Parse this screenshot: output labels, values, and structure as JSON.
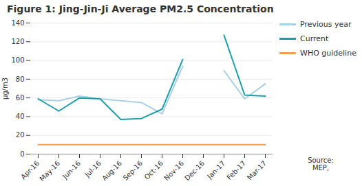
{
  "chart_data": {
    "type": "line",
    "title": "Figure 1: Jing-Jin-Ji Average PM2.5 Concentration",
    "ylabel": "μg/m3",
    "categories": [
      "Apr-16",
      "May-16",
      "Jun-16",
      "Jul-16",
      "Aug-16",
      "Sep-16",
      "Oct-16",
      "Nov-16",
      "Dec-16",
      "Jan-17",
      "Feb-17",
      "Mar-17"
    ],
    "series": [
      {
        "name": "Previous year",
        "color": "#aacfe8",
        "values": [
          58,
          57,
          62,
          59,
          57,
          55,
          43,
          94,
          null,
          89,
          59,
          75
        ]
      },
      {
        "name": "Current",
        "color": "#1b9ea6",
        "values": [
          59,
          46,
          60,
          59,
          37,
          38,
          48,
          101,
          null,
          127,
          63,
          62
        ]
      },
      {
        "name": "WHO guideline",
        "color": "#f0a050",
        "values": [
          10,
          10,
          10,
          10,
          10,
          10,
          10,
          10,
          10,
          10,
          10,
          10
        ]
      }
    ],
    "ylim": [
      0,
      140
    ],
    "yticks": [
      0,
      20,
      40,
      60,
      80,
      100,
      120,
      140
    ],
    "grid": true,
    "legend": "right",
    "annotations": [
      "Source:\nMEP,"
    ]
  }
}
